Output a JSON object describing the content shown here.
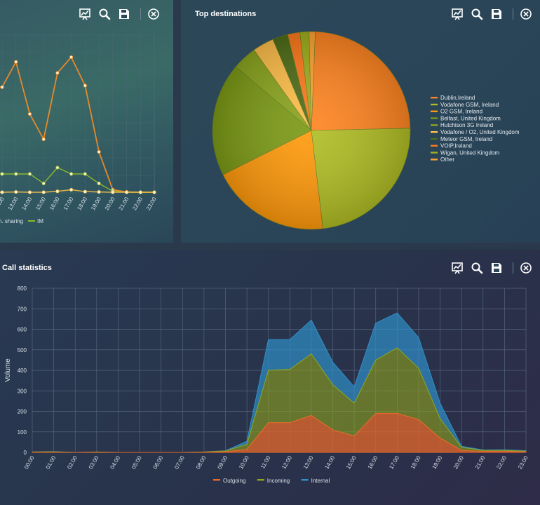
{
  "panels": {
    "left": {
      "title": ""
    },
    "right": {
      "title": "Top destinations"
    },
    "bottom": {
      "title": "Call statistics"
    }
  },
  "toolbar_icons": [
    "chart-icon",
    "search-icon",
    "save-icon",
    "close-icon"
  ],
  "colors": {
    "outgoing": "#e8682a",
    "incoming": "#8fa31c",
    "internal": "#2f8fc8",
    "grid": "#4d6a7a",
    "line_main": "#e8892a",
    "line_green": "#8ab82a"
  },
  "chart_data": [
    {
      "type": "line",
      "title": "",
      "x": [
        "12:00",
        "13:00",
        "14:00",
        "15:00",
        "16:00",
        "17:00",
        "18:00",
        "19:00",
        "20:00",
        "21:00",
        "22:00",
        "23:00"
      ],
      "series": [
        {
          "name": "",
          "values": [
            335,
            415,
            250,
            170,
            380,
            430,
            340,
            130,
            10,
            3,
            2,
            2
          ]
        },
        {
          "name": "",
          "values": [
            60,
            60,
            60,
            30,
            80,
            60,
            60,
            30,
            5,
            2,
            2,
            2
          ]
        },
        {
          "name": "",
          "values": [
            2,
            3,
            2,
            2,
            5,
            10,
            4,
            3,
            2,
            2,
            2,
            2
          ]
        }
      ],
      "legend": [
        "n. sharing",
        "IM"
      ],
      "legend_placement": "bottom",
      "ylim": [
        0,
        500
      ],
      "grid": true
    },
    {
      "type": "pie",
      "title": "Top destinations",
      "legend_placement": "right",
      "slices": [
        {
          "label": "Dublin,Ireland",
          "value": 24,
          "color": "#ff8522"
        },
        {
          "label": "Vodafone GSM, Ireland",
          "value": 23.5,
          "color": "#b0bd25"
        },
        {
          "label": "O2 GSM, Ireland",
          "value": 19.5,
          "color": "#ff9a0c"
        },
        {
          "label": "Belfast, United Kingdom",
          "value": 18.5,
          "color": "#7c9a16"
        },
        {
          "label": "Hutchison 3G Ireland",
          "value": 4,
          "color": "#8ba51e"
        },
        {
          "label": "Vodafone / O2, United Kingdom",
          "value": 3.5,
          "color": "#ffbf4a"
        },
        {
          "label": "Meteor GSM, Ireland",
          "value": 2.5,
          "color": "#4f6e18"
        },
        {
          "label": "VOIP,Ireland",
          "value": 2,
          "color": "#ff7a1c"
        },
        {
          "label": "Wigan, United Kingdom",
          "value": 1.5,
          "color": "#a0b01e"
        },
        {
          "label": "Other",
          "value": 1,
          "color": "#ffa431"
        }
      ]
    },
    {
      "type": "area",
      "title": "Call statistics",
      "ylabel": "Volume",
      "ylim": [
        0,
        800
      ],
      "yticks": [
        0,
        100,
        200,
        300,
        400,
        500,
        600,
        700,
        800
      ],
      "x": [
        "00:00",
        "01:00",
        "02:00",
        "03:00",
        "04:00",
        "05:00",
        "06:00",
        "07:00",
        "08:00",
        "09:00",
        "10:00",
        "11:00",
        "12:00",
        "13:00",
        "14:00",
        "15:00",
        "16:00",
        "17:00",
        "18:00",
        "19:00",
        "20:00",
        "21:00",
        "22:00",
        "23:00"
      ],
      "stacked": true,
      "grid": true,
      "legend_placement": "bottom",
      "series": [
        {
          "name": "Outgoing",
          "values": [
            1,
            1,
            0,
            1,
            0,
            0,
            0,
            0,
            1,
            3,
            15,
            145,
            145,
            180,
            110,
            80,
            190,
            190,
            160,
            70,
            10,
            5,
            5,
            3
          ]
        },
        {
          "name": "Incoming",
          "values": [
            1,
            2,
            0,
            1,
            0,
            0,
            0,
            0,
            1,
            4,
            25,
            255,
            260,
            300,
            220,
            160,
            260,
            320,
            250,
            95,
            15,
            5,
            5,
            3
          ]
        },
        {
          "name": "Internal",
          "values": [
            0,
            1,
            0,
            0,
            0,
            0,
            0,
            0,
            0,
            1,
            15,
            150,
            145,
            165,
            110,
            80,
            180,
            170,
            150,
            75,
            5,
            2,
            3,
            2
          ]
        }
      ]
    }
  ]
}
